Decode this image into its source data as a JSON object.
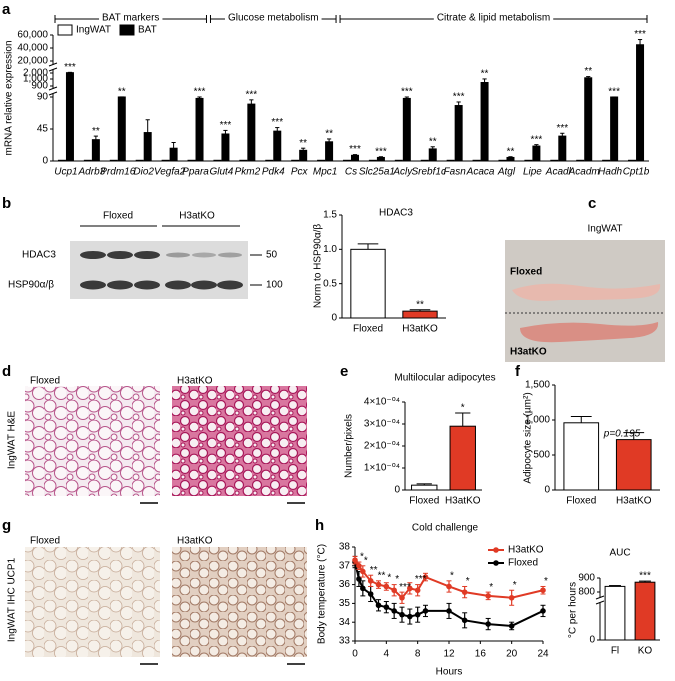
{
  "panel_labels": [
    "a",
    "b",
    "c",
    "d",
    "e",
    "f",
    "g",
    "h"
  ],
  "chart_data": [
    {
      "type": "bar",
      "ylabel": "mRNA relative expression",
      "groups": [
        "BAT markers",
        "Glucose metabolism",
        "Citrate & lipid metabolism"
      ],
      "categories": [
        "Ucp1",
        "Adrb3",
        "Prdm16",
        "Dio2",
        "Vegfa2",
        "Ppara",
        "Glut4",
        "Pkm2",
        "Pdk4",
        "Pcx",
        "Mpc1",
        "Cs",
        "Slc25a1",
        "Acly",
        "Srebf1c",
        "Fasn",
        "Acaca",
        "Atgl",
        "Lipe",
        "Acadl",
        "Acadm",
        "Hadh",
        "Cpt1b"
      ],
      "series": [
        {
          "name": "IngWAT",
          "color": "#ffffff",
          "values": [
            1,
            1,
            1,
            1,
            1,
            1,
            1,
            1,
            1,
            1,
            1,
            1,
            1,
            1,
            1,
            1,
            1,
            1,
            1,
            1,
            1,
            1,
            1
          ]
        },
        {
          "name": "BAT",
          "color": "#000000",
          "values": [
            2500,
            30,
            92,
            40,
            18,
            88,
            38,
            80,
            42,
            15,
            27,
            8,
            5,
            88,
            17,
            78,
            950,
            5,
            21,
            35,
            1200,
            90,
            45000
          ],
          "errors": [
            500,
            5,
            4,
            18,
            8,
            4,
            5,
            6,
            5,
            3,
            4,
            1,
            1,
            3,
            3,
            5,
            60,
            1,
            2,
            4,
            200,
            3,
            8000
          ]
        }
      ],
      "annotations": [
        "***",
        "**",
        "**",
        null,
        null,
        "***",
        "***",
        "***",
        "***",
        "**",
        "**",
        "***",
        "***",
        "***",
        "**",
        "***",
        "**",
        "**",
        "***",
        "***",
        "**",
        "***",
        "***"
      ],
      "ylim": [
        0,
        60000
      ],
      "yticks": [
        0,
        45,
        90,
        900,
        {
          "value": 1000,
          "label": "1,000"
        },
        {
          "value": 2000,
          "label": "2,000"
        },
        {
          "value": 20000,
          "label": "20,000"
        },
        {
          "value": 40000,
          "label": "40,000"
        },
        {
          "value": 60000,
          "label": "60,000"
        }
      ],
      "axis_break": true,
      "legend": "top-left"
    },
    {
      "type": "bar",
      "title": "HDAC3",
      "ylabel": "Norm to HSP90α/β",
      "categories": [
        "Floxed",
        "H3atKO"
      ],
      "values": [
        1.0,
        0.1
      ],
      "errors": [
        0.08,
        0.02
      ],
      "colors": [
        "#ffffff",
        "#e03a25"
      ],
      "annotations": [
        null,
        "**"
      ],
      "ylim": [
        0,
        1.5
      ],
      "yticks": [
        0,
        0.5,
        {
          "value": 1,
          "label": "1.0"
        },
        1.5
      ]
    },
    {
      "type": "bar",
      "title": "Multilocular adipocytes",
      "ylabel": "Number/pixels",
      "categories": [
        "Floxed",
        "H3atKO"
      ],
      "values": [
        2.2e-05,
        0.00029
      ],
      "errors": [
        6e-06,
        6e-05
      ],
      "colors": [
        "#ffffff",
        "#e03a25"
      ],
      "annotations": [
        null,
        "*"
      ],
      "ylim": [
        0,
        0.0004
      ],
      "yticks": [
        0,
        {
          "value": 0.0001,
          "label": "1×10⁻⁰⁴"
        },
        {
          "value": 0.0002,
          "label": "2×10⁻⁰⁴"
        },
        {
          "value": 0.0003,
          "label": "3×10⁻⁰⁴"
        },
        {
          "value": 0.0004,
          "label": "4×10⁻⁰⁴"
        }
      ]
    },
    {
      "type": "bar",
      "ylabel": "Adipocyte size (µm²)",
      "note": "p=0.195",
      "categories": [
        "Floxed",
        "H3atKO"
      ],
      "values": [
        960,
        720
      ],
      "errors": [
        90,
        100
      ],
      "colors": [
        "#ffffff",
        "#e03a25"
      ],
      "ylim": [
        0,
        1500
      ],
      "yticks": [
        0,
        500,
        {
          "value": 1000,
          "label": "1,000"
        },
        {
          "value": 1500,
          "label": "1,500"
        }
      ]
    },
    {
      "type": "line",
      "title": "Cold challenge",
      "xlabel": "Hours",
      "ylabel": "Body temperature (°C)",
      "x": [
        0,
        0.5,
        1,
        2,
        3,
        4,
        5,
        6,
        7,
        8,
        9,
        12,
        14,
        17,
        20,
        24
      ],
      "series": [
        {
          "name": "H3atKO",
          "color": "#e03a25",
          "values": [
            37.3,
            37.0,
            36.7,
            36.2,
            36.0,
            35.9,
            35.7,
            35.3,
            35.8,
            35.7,
            36.4,
            35.9,
            35.6,
            35.4,
            35.3,
            35.7
          ],
          "errors": [
            0.2,
            0.2,
            0.3,
            0.3,
            0.2,
            0.2,
            0.3,
            0.3,
            0.3,
            0.3,
            0.2,
            0.3,
            0.3,
            0.2,
            0.4,
            0.2
          ]
        },
        {
          "name": "Floxed",
          "color": "#000000",
          "values": [
            37.2,
            36.3,
            35.8,
            35.5,
            34.9,
            34.8,
            34.6,
            34.4,
            34.3,
            34.4,
            34.6,
            34.6,
            34.1,
            33.9,
            33.8,
            34.6
          ],
          "errors": [
            0.3,
            0.4,
            0.4,
            0.4,
            0.3,
            0.3,
            0.4,
            0.4,
            0.4,
            0.4,
            0.3,
            0.4,
            0.4,
            0.3,
            0.2,
            0.3
          ]
        }
      ],
      "annotations": [
        null,
        "*",
        "*",
        "**",
        "**",
        "*",
        "*",
        "***",
        null,
        "***",
        null,
        "*",
        "*",
        "*",
        "*",
        "*"
      ],
      "xlim": [
        0,
        24
      ],
      "xticks": [
        0,
        4,
        8,
        12,
        16,
        20,
        24
      ],
      "ylim": [
        33,
        38
      ],
      "yticks": [
        33,
        34,
        35,
        36,
        37,
        38
      ],
      "legend": "top-right"
    },
    {
      "type": "bar",
      "title": "AUC",
      "ylabel": "°C per hours",
      "categories": [
        "Fl",
        "KO"
      ],
      "values": [
        840,
        870
      ],
      "errors": [
        6,
        8
      ],
      "colors": [
        "#ffffff",
        "#e03a25"
      ],
      "annotations": [
        null,
        "***"
      ],
      "ylim": [
        0,
        900
      ],
      "yticks": [
        0,
        800,
        900
      ],
      "axis_break": true
    }
  ],
  "blot": {
    "groups": [
      "Floxed",
      "H3atKO"
    ],
    "bands": [
      "HDAC3",
      "HSP90α/β"
    ],
    "markers": [
      "50",
      "100"
    ]
  },
  "photo": {
    "title": "IngWAT",
    "labels": [
      "Floxed",
      "H3atKO"
    ]
  },
  "he": {
    "label": "IngWAT H&E",
    "groups": [
      "Floxed",
      "H3atKO"
    ]
  },
  "ihc": {
    "label": "IngWAT IHC UCP1",
    "groups": [
      "Floxed",
      "H3atKO"
    ]
  }
}
